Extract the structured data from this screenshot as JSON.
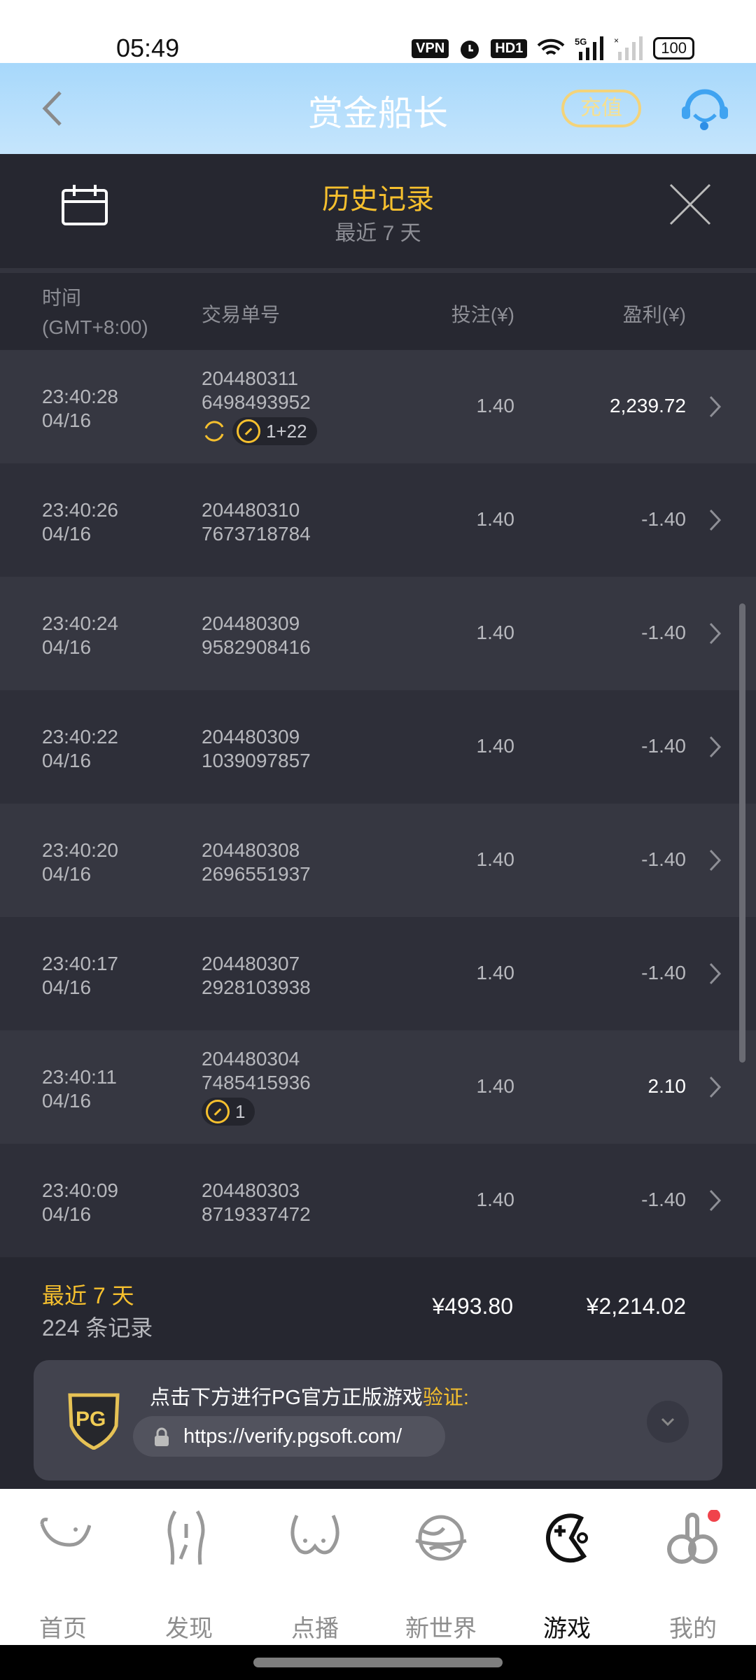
{
  "status_bar": {
    "time": "05:49",
    "vpn": "VPN",
    "hd": "HD1",
    "network": "5G",
    "battery": "100"
  },
  "appbar": {
    "title": "赏金船长",
    "recharge": "充值"
  },
  "panel": {
    "title": "历史记录",
    "subtitle": "最近 7 天"
  },
  "table": {
    "headers": {
      "time": "时间",
      "tz": "(GMT+8:00)",
      "order": "交易单号",
      "bet": "投注(¥)",
      "profit": "盈利(¥)"
    },
    "rows": [
      {
        "time": "23:40:28",
        "date": "04/16",
        "id1": "204480311",
        "id2": "6498493952",
        "bet": "1.40",
        "profit": "2,239.72",
        "tag": "1+22",
        "respin": true
      },
      {
        "time": "23:40:26",
        "date": "04/16",
        "id1": "204480310",
        "id2": "7673718784",
        "bet": "1.40",
        "profit": "-1.40"
      },
      {
        "time": "23:40:24",
        "date": "04/16",
        "id1": "204480309",
        "id2": "9582908416",
        "bet": "1.40",
        "profit": "-1.40"
      },
      {
        "time": "23:40:22",
        "date": "04/16",
        "id1": "204480309",
        "id2": "1039097857",
        "bet": "1.40",
        "profit": "-1.40"
      },
      {
        "time": "23:40:20",
        "date": "04/16",
        "id1": "204480308",
        "id2": "2696551937",
        "bet": "1.40",
        "profit": "-1.40"
      },
      {
        "time": "23:40:17",
        "date": "04/16",
        "id1": "204480307",
        "id2": "2928103938",
        "bet": "1.40",
        "profit": "-1.40"
      },
      {
        "time": "23:40:11",
        "date": "04/16",
        "id1": "204480304",
        "id2": "7485415936",
        "bet": "1.40",
        "profit": "2.10",
        "tag": "1"
      },
      {
        "time": "23:40:09",
        "date": "04/16",
        "id1": "204480303",
        "id2": "8719337472",
        "bet": "1.40",
        "profit": "-1.40"
      }
    ]
  },
  "summary": {
    "period": "最近 7 天",
    "count": "224 条记录",
    "total_bet": "¥493.80",
    "total_profit": "¥2,214.02"
  },
  "verify": {
    "logo": "PG",
    "message": "点击下方进行PG官方正版游戏",
    "highlight": "验证:",
    "url": "https://verify.pgsoft.com/"
  },
  "nav": [
    {
      "label": "首页"
    },
    {
      "label": "发现"
    },
    {
      "label": "点播"
    },
    {
      "label": "新世界"
    },
    {
      "label": "游戏",
      "active": true
    },
    {
      "label": "我的",
      "dot": true
    }
  ],
  "colors": {
    "accent": "#f6c02e",
    "background": "#262730",
    "header": "#a7d8fb",
    "notification": "#f0434b"
  }
}
